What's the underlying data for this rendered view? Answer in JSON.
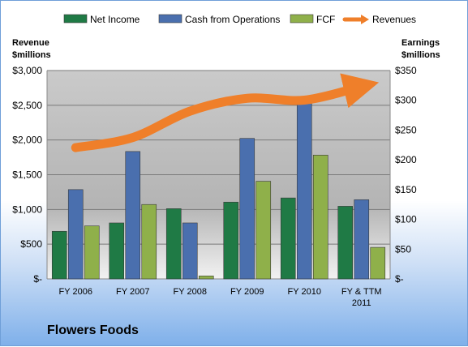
{
  "chart_data": {
    "type": "bar",
    "title": "Flowers Foods",
    "categories": [
      "FY 2006",
      "FY 2007",
      "FY 2008",
      "FY 2009",
      "FY 2010",
      "FY & TTM 2011"
    ],
    "series": [
      {
        "name": "Net Income",
        "axis": "right",
        "color": "#1f7a45",
        "values": [
          80,
          94,
          118,
          129,
          136,
          122
        ]
      },
      {
        "name": "Cash from Operations",
        "axis": "right",
        "color": "#4a6fae",
        "values": [
          150,
          214,
          94,
          236,
          306,
          133
        ]
      },
      {
        "name": "FCF",
        "axis": "right",
        "color": "#8fb04a",
        "values": [
          89,
          125,
          5,
          164,
          208,
          53
        ]
      },
      {
        "name": "Revenues",
        "axis": "left",
        "type": "line",
        "color": "#ef7f2a",
        "values": [
          1890,
          2036,
          2415,
          2600,
          2574,
          2770
        ]
      }
    ],
    "left_axis": {
      "title_line1": "Revenue",
      "title_line2": "$millions",
      "ylim": [
        0,
        3000
      ],
      "ticks": [
        0,
        500,
        1000,
        1500,
        2000,
        2500,
        3000
      ],
      "tick_labels": [
        "$-",
        "$500",
        "$1,000",
        "$1,500",
        "$2,000",
        "$2,500",
        "$3,000"
      ]
    },
    "right_axis": {
      "title_line1": "Earnings",
      "title_line2": "$millions",
      "ylim": [
        0,
        350
      ],
      "ticks": [
        0,
        50,
        100,
        150,
        200,
        250,
        300,
        350
      ],
      "tick_labels": [
        "$-",
        "$50",
        "$100",
        "$150",
        "$200",
        "$250",
        "$300",
        "$350"
      ]
    },
    "grid": true,
    "legend_position": "top"
  }
}
